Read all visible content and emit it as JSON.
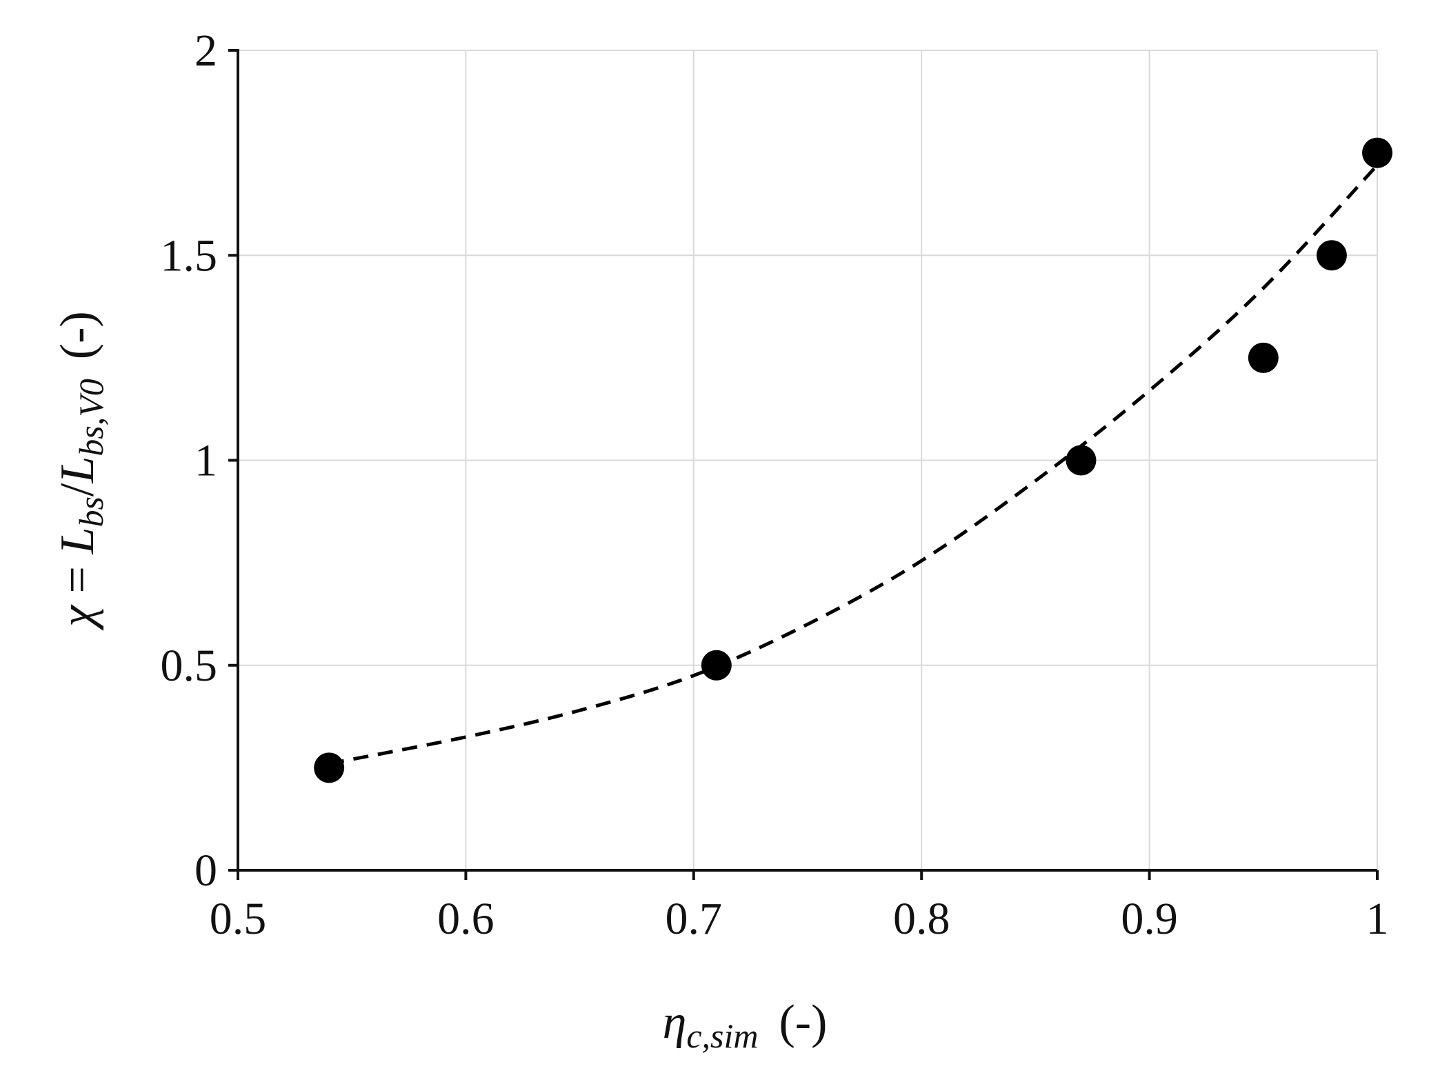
{
  "chart_data": {
    "type": "scatter",
    "x_ticks": [
      "0.5",
      "0.6",
      "0.7",
      "0.8",
      "0.9",
      "1"
    ],
    "y_ticks": [
      "0",
      "0.5",
      "1",
      "1.5",
      "2"
    ],
    "xlim": [
      0.5,
      1.0
    ],
    "ylim": [
      0,
      2
    ],
    "grid": true,
    "xlabel": {
      "symbol": "η",
      "subscript": "c,sim",
      "unit": "(-)"
    },
    "ylabel": {
      "chi": "χ",
      "eq": " = ",
      "num": "L",
      "num_sub": "bs",
      "slash": "/",
      "den": "L",
      "den_sub": "bs,V0",
      "unit": "(-)"
    },
    "series": [
      {
        "marker": "circle",
        "color": "#000000",
        "x": [
          0.54,
          0.71,
          0.87,
          0.95,
          0.98,
          1.0
        ],
        "y": [
          0.25,
          0.5,
          1.0,
          1.25,
          1.5,
          1.75
        ]
      }
    ],
    "trendline": {
      "style": "dashed",
      "color": "#000000",
      "x": [
        0.54,
        0.6,
        0.65,
        0.7,
        0.75,
        0.8,
        0.85,
        0.9,
        0.95,
        1.0
      ],
      "y": [
        0.26,
        0.325,
        0.39,
        0.475,
        0.6,
        0.755,
        0.95,
        1.17,
        1.42,
        1.72
      ]
    }
  }
}
